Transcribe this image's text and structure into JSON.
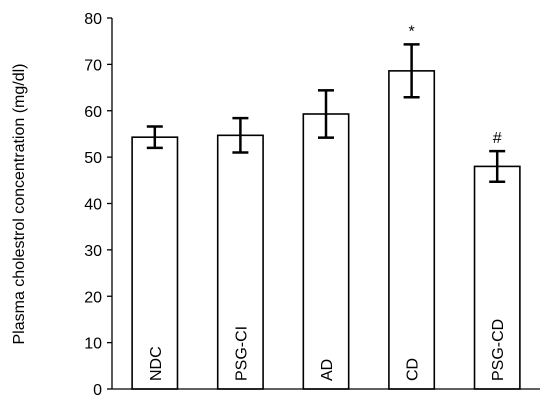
{
  "chart_data": {
    "type": "bar",
    "title": "",
    "xlabel": "",
    "ylabel": "Plasma cholestrol concentration (mg/dl)",
    "ylim": [
      0,
      80
    ],
    "yticks": [
      0,
      10,
      20,
      30,
      40,
      50,
      60,
      70,
      80
    ],
    "categories": [
      "NDC",
      "PSG-CI",
      "AD",
      "CD",
      "PSG-CD"
    ],
    "values": [
      54.3,
      54.7,
      59.3,
      68.6,
      48.0
    ],
    "errors": [
      2.3,
      3.7,
      5.1,
      5.7,
      3.3
    ],
    "annotations": [
      "",
      "",
      "",
      "*",
      "#"
    ],
    "grid": false,
    "legend": "none",
    "bar_fill": "#ffffff",
    "bar_stroke": "#000000"
  }
}
